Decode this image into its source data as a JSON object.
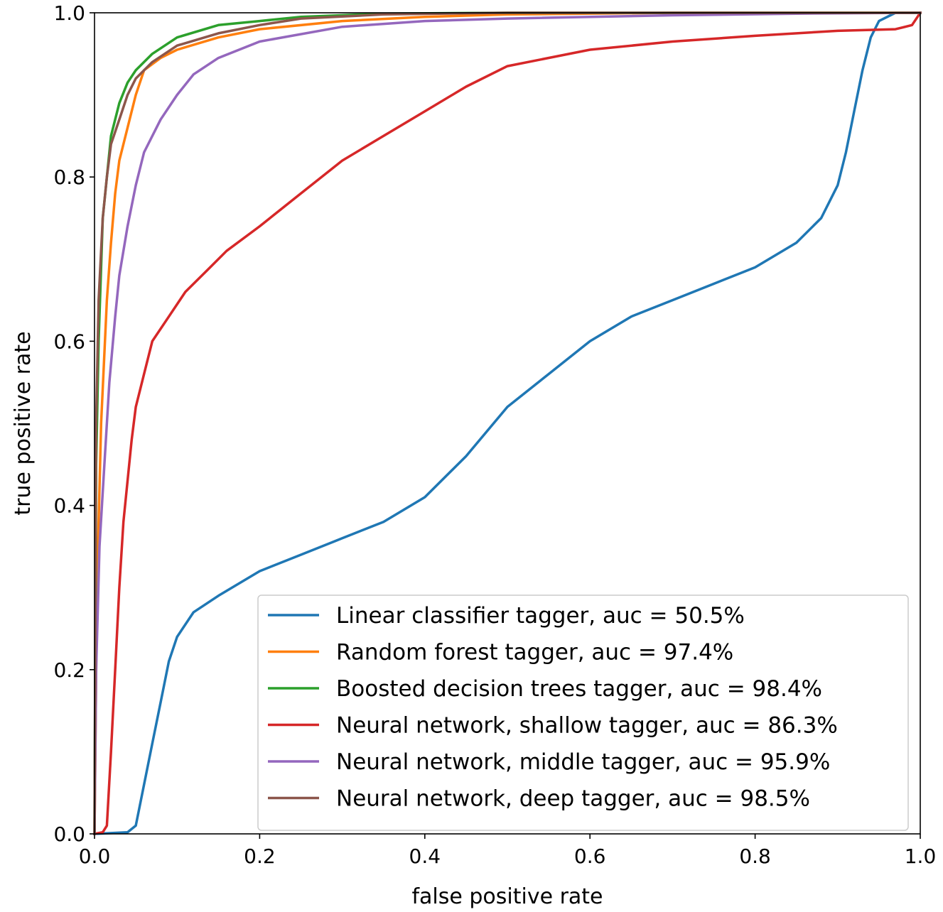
{
  "chart_data": {
    "type": "line",
    "xlabel": "false positive rate",
    "ylabel": "true positive rate",
    "xlim": [
      0.0,
      1.0
    ],
    "ylim": [
      0.0,
      1.0
    ],
    "xticks": [
      "0.0",
      "0.2",
      "0.4",
      "0.6",
      "0.8",
      "1.0"
    ],
    "yticks": [
      "0.0",
      "0.2",
      "0.4",
      "0.6",
      "0.8",
      "1.0"
    ],
    "grid": false,
    "legend_position": "bottom-right",
    "series": [
      {
        "name": "Linear classifier tagger, auc = 50.5%",
        "color": "#1f77b4",
        "points": [
          [
            0.0,
            0.0
          ],
          [
            0.04,
            0.002
          ],
          [
            0.05,
            0.01
          ],
          [
            0.06,
            0.06
          ],
          [
            0.07,
            0.11
          ],
          [
            0.08,
            0.16
          ],
          [
            0.09,
            0.21
          ],
          [
            0.1,
            0.24
          ],
          [
            0.12,
            0.27
          ],
          [
            0.15,
            0.29
          ],
          [
            0.2,
            0.32
          ],
          [
            0.25,
            0.34
          ],
          [
            0.3,
            0.36
          ],
          [
            0.35,
            0.38
          ],
          [
            0.4,
            0.41
          ],
          [
            0.45,
            0.46
          ],
          [
            0.5,
            0.52
          ],
          [
            0.55,
            0.56
          ],
          [
            0.6,
            0.6
          ],
          [
            0.65,
            0.63
          ],
          [
            0.7,
            0.65
          ],
          [
            0.75,
            0.67
          ],
          [
            0.8,
            0.69
          ],
          [
            0.85,
            0.72
          ],
          [
            0.88,
            0.75
          ],
          [
            0.9,
            0.79
          ],
          [
            0.91,
            0.83
          ],
          [
            0.92,
            0.88
          ],
          [
            0.93,
            0.93
          ],
          [
            0.94,
            0.97
          ],
          [
            0.95,
            0.99
          ],
          [
            0.97,
            1.0
          ],
          [
            1.0,
            1.0
          ]
        ]
      },
      {
        "name": "Random forest tagger, auc = 97.4%",
        "color": "#ff7f0e",
        "points": [
          [
            0.0,
            0.0
          ],
          [
            0.003,
            0.3
          ],
          [
            0.008,
            0.5
          ],
          [
            0.015,
            0.65
          ],
          [
            0.02,
            0.72
          ],
          [
            0.025,
            0.78
          ],
          [
            0.03,
            0.82
          ],
          [
            0.04,
            0.86
          ],
          [
            0.05,
            0.9
          ],
          [
            0.06,
            0.93
          ],
          [
            0.08,
            0.945
          ],
          [
            0.1,
            0.955
          ],
          [
            0.15,
            0.97
          ],
          [
            0.2,
            0.98
          ],
          [
            0.3,
            0.99
          ],
          [
            0.4,
            0.995
          ],
          [
            0.5,
            0.998
          ],
          [
            0.7,
            1.0
          ],
          [
            1.0,
            1.0
          ]
        ]
      },
      {
        "name": "Boosted decision trees tagger, auc = 98.4%",
        "color": "#2ca02c",
        "points": [
          [
            0.0,
            0.0
          ],
          [
            0.002,
            0.45
          ],
          [
            0.005,
            0.6
          ],
          [
            0.01,
            0.75
          ],
          [
            0.02,
            0.85
          ],
          [
            0.03,
            0.89
          ],
          [
            0.04,
            0.915
          ],
          [
            0.05,
            0.93
          ],
          [
            0.07,
            0.95
          ],
          [
            0.1,
            0.97
          ],
          [
            0.15,
            0.985
          ],
          [
            0.2,
            0.99
          ],
          [
            0.25,
            0.995
          ],
          [
            0.35,
            0.999
          ],
          [
            0.5,
            1.0
          ],
          [
            1.0,
            1.0
          ]
        ]
      },
      {
        "name": "Neural network, shallow tagger, auc = 86.3%",
        "color": "#d62728",
        "points": [
          [
            0.0,
            0.0
          ],
          [
            0.01,
            0.002
          ],
          [
            0.015,
            0.01
          ],
          [
            0.02,
            0.1
          ],
          [
            0.025,
            0.2
          ],
          [
            0.03,
            0.3
          ],
          [
            0.035,
            0.38
          ],
          [
            0.04,
            0.43
          ],
          [
            0.045,
            0.48
          ],
          [
            0.05,
            0.52
          ],
          [
            0.06,
            0.56
          ],
          [
            0.07,
            0.6
          ],
          [
            0.09,
            0.63
          ],
          [
            0.11,
            0.66
          ],
          [
            0.14,
            0.69
          ],
          [
            0.16,
            0.71
          ],
          [
            0.2,
            0.74
          ],
          [
            0.25,
            0.78
          ],
          [
            0.3,
            0.82
          ],
          [
            0.35,
            0.85
          ],
          [
            0.4,
            0.88
          ],
          [
            0.45,
            0.91
          ],
          [
            0.5,
            0.935
          ],
          [
            0.6,
            0.955
          ],
          [
            0.7,
            0.965
          ],
          [
            0.8,
            0.972
          ],
          [
            0.9,
            0.978
          ],
          [
            0.97,
            0.98
          ],
          [
            0.99,
            0.985
          ],
          [
            1.0,
            1.0
          ]
        ]
      },
      {
        "name": "Neural network, middle tagger, auc = 95.9%",
        "color": "#9467bd",
        "points": [
          [
            0.0,
            0.0
          ],
          [
            0.002,
            0.2
          ],
          [
            0.006,
            0.35
          ],
          [
            0.012,
            0.45
          ],
          [
            0.018,
            0.55
          ],
          [
            0.025,
            0.63
          ],
          [
            0.03,
            0.68
          ],
          [
            0.04,
            0.74
          ],
          [
            0.05,
            0.79
          ],
          [
            0.06,
            0.83
          ],
          [
            0.08,
            0.87
          ],
          [
            0.1,
            0.9
          ],
          [
            0.12,
            0.925
          ],
          [
            0.15,
            0.945
          ],
          [
            0.2,
            0.965
          ],
          [
            0.3,
            0.983
          ],
          [
            0.4,
            0.99
          ],
          [
            0.5,
            0.993
          ],
          [
            0.7,
            0.997
          ],
          [
            0.85,
            0.999
          ],
          [
            1.0,
            1.0
          ]
        ]
      },
      {
        "name": "Neural network, deep tagger, auc = 98.5%",
        "color": "#8c564b",
        "points": [
          [
            0.0,
            0.0
          ],
          [
            0.002,
            0.5
          ],
          [
            0.005,
            0.65
          ],
          [
            0.01,
            0.75
          ],
          [
            0.015,
            0.8
          ],
          [
            0.02,
            0.84
          ],
          [
            0.03,
            0.87
          ],
          [
            0.04,
            0.9
          ],
          [
            0.05,
            0.92
          ],
          [
            0.07,
            0.94
          ],
          [
            0.1,
            0.96
          ],
          [
            0.15,
            0.975
          ],
          [
            0.2,
            0.985
          ],
          [
            0.25,
            0.993
          ],
          [
            0.35,
            0.998
          ],
          [
            0.5,
            1.0
          ],
          [
            1.0,
            1.0
          ]
        ]
      }
    ]
  }
}
